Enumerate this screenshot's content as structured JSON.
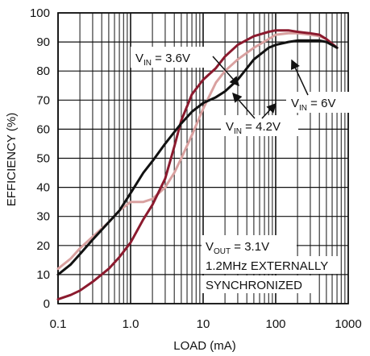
{
  "chart_data": {
    "type": "line",
    "xlabel": "LOAD (mA)",
    "ylabel": "EFFICIENCY (%)",
    "x_scale": "log",
    "xlim": [
      0.1,
      1000
    ],
    "ylim": [
      0,
      100
    ],
    "grid": true,
    "x_tick_labels": [
      "0.1",
      "1.0",
      "10",
      "100",
      "1000"
    ],
    "y_tick_labels": [
      "0",
      "10",
      "20",
      "30",
      "40",
      "50",
      "60",
      "70",
      "80",
      "90",
      "100"
    ],
    "colors": {
      "vin_3_6": "#8b1a2e",
      "vin_4_2": "#d9a1a0",
      "vin_6": "#111111",
      "grid": "#111111"
    },
    "series": [
      {
        "id": "vin_3_6",
        "x": [
          0.1,
          0.15,
          0.2,
          0.3,
          0.5,
          0.7,
          1,
          1.5,
          2,
          3,
          4,
          5,
          7,
          10,
          15,
          20,
          30,
          50,
          80,
          100,
          150,
          200,
          300,
          400,
          500,
          700
        ],
        "y": [
          1.5,
          3,
          4.5,
          7.5,
          12,
          16,
          21,
          29,
          34,
          43,
          54,
          63,
          72,
          77,
          81,
          85,
          89,
          92,
          93.5,
          94,
          94,
          93.5,
          93,
          92.5,
          91,
          88
        ]
      },
      {
        "id": "vin_4_2",
        "x": [
          0.1,
          0.15,
          0.2,
          0.3,
          0.5,
          0.7,
          1,
          1.5,
          2,
          3,
          4,
          5,
          7,
          10,
          15,
          20,
          30,
          50,
          80,
          100,
          150,
          200,
          300,
          400,
          500,
          700
        ],
        "y": [
          12,
          15.5,
          19,
          23,
          28,
          32,
          35,
          35,
          36,
          40,
          45,
          50,
          58,
          67,
          76,
          80,
          84,
          88,
          91,
          92.5,
          93,
          93,
          92.5,
          92,
          91,
          88
        ]
      },
      {
        "id": "vin_6",
        "x": [
          0.1,
          0.15,
          0.2,
          0.3,
          0.5,
          0.7,
          1,
          1.5,
          2,
          3,
          4,
          5,
          7,
          10,
          15,
          20,
          30,
          50,
          80,
          100,
          150,
          200,
          300,
          400,
          500,
          700
        ],
        "y": [
          10,
          13.5,
          17,
          22,
          28,
          32,
          38,
          45,
          49,
          55,
          59,
          62,
          66,
          69,
          71,
          73,
          77,
          84,
          88,
          89,
          90,
          90.5,
          90.5,
          90.5,
          90,
          88
        ]
      }
    ],
    "annotations": [
      {
        "id": "vin_3_6",
        "main": "V",
        "sub": "IN",
        "rest": " = 3.6V"
      },
      {
        "id": "vin_4_2",
        "main": "V",
        "sub": "IN",
        "rest": " = 4.2V"
      },
      {
        "id": "vin_6",
        "main": "V",
        "sub": "IN",
        "rest": " = 6V"
      },
      {
        "id": "vout",
        "main": "V",
        "sub": "OUT",
        "rest": " = 3.1V"
      },
      {
        "id": "sync1",
        "main": "1.2MHz EXTERNALLY",
        "sub": "",
        "rest": ""
      },
      {
        "id": "sync2",
        "main": "SYNCHRONIZED",
        "sub": "",
        "rest": ""
      }
    ]
  }
}
